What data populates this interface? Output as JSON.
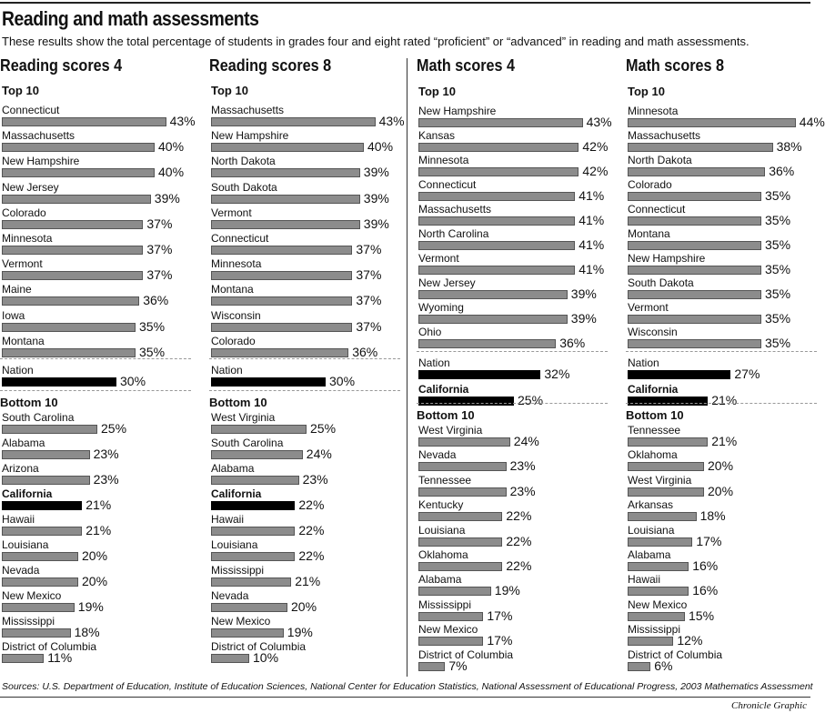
{
  "title": "Reading and math assessments",
  "subtitle": "These results show the total percentage of students in grades four and eight rated “proficient” or “advanced” in reading and math assessments.",
  "sources": "Sources: U.S. Department of Education, Institute of Education Sciences, National Center for Education Statistics, National Assessment of Educational Progress, 2003 Mathematics Assessment",
  "credit": "Chronicle Graphic",
  "chart_data": [
    {
      "type": "bar",
      "title": "Reading scores 4",
      "top_label": "Top 10",
      "bottom_label": "Bottom 10",
      "unit": "%",
      "top": [
        [
          "Connecticut",
          43
        ],
        [
          "Massachusetts",
          40
        ],
        [
          "New Hampshire",
          40
        ],
        [
          "New Jersey",
          39
        ],
        [
          "Colorado",
          37
        ],
        [
          "Minnesota",
          37
        ],
        [
          "Vermont",
          37
        ],
        [
          "Maine",
          36
        ],
        [
          "Iowa",
          35
        ],
        [
          "Montana",
          35
        ]
      ],
      "mid": [
        [
          "Nation",
          30
        ]
      ],
      "bottom": [
        [
          "South Carolina",
          25
        ],
        [
          "Alabama",
          23
        ],
        [
          "Arizona",
          23
        ],
        [
          "California",
          21
        ],
        [
          "Hawaii",
          21
        ],
        [
          "Louisiana",
          20
        ],
        [
          "Nevada",
          20
        ],
        [
          "New Mexico",
          19
        ],
        [
          "Mississippi",
          18
        ],
        [
          "District of Columbia",
          11
        ]
      ]
    },
    {
      "type": "bar",
      "title": "Reading scores 8",
      "top_label": "Top 10",
      "bottom_label": "Bottom 10",
      "unit": "%",
      "top": [
        [
          "Massachusetts",
          43
        ],
        [
          "New Hampshire",
          40
        ],
        [
          "North Dakota",
          39
        ],
        [
          "South Dakota",
          39
        ],
        [
          "Vermont",
          39
        ],
        [
          "Connecticut",
          37
        ],
        [
          "Minnesota",
          37
        ],
        [
          "Montana",
          37
        ],
        [
          "Wisconsin",
          37
        ],
        [
          "Colorado",
          36
        ]
      ],
      "mid": [
        [
          "Nation",
          30
        ]
      ],
      "bottom": [
        [
          "West Virginia",
          25
        ],
        [
          "South Carolina",
          24
        ],
        [
          "Alabama",
          23
        ],
        [
          "California",
          22
        ],
        [
          "Hawaii",
          22
        ],
        [
          "Louisiana",
          22
        ],
        [
          "Mississippi",
          21
        ],
        [
          "Nevada",
          20
        ],
        [
          "New Mexico",
          19
        ],
        [
          "District of Columbia",
          10
        ]
      ]
    },
    {
      "type": "bar",
      "title": "Math scores 4",
      "top_label": "Top 10",
      "bottom_label": "Bottom 10",
      "unit": "%",
      "top": [
        [
          "New Hampshire",
          43
        ],
        [
          "Kansas",
          42
        ],
        [
          "Minnesota",
          42
        ],
        [
          "Connecticut",
          41
        ],
        [
          "Massachusetts",
          41
        ],
        [
          "North Carolina",
          41
        ],
        [
          "Vermont",
          41
        ],
        [
          "New Jersey",
          39
        ],
        [
          "Wyoming",
          39
        ],
        [
          "Ohio",
          36
        ]
      ],
      "mid": [
        [
          "Nation",
          32
        ],
        [
          "California",
          25
        ]
      ],
      "bottom": [
        [
          "West Virginia",
          24
        ],
        [
          "Nevada",
          23
        ],
        [
          "Tennessee",
          23
        ],
        [
          "Kentucky",
          22
        ],
        [
          "Louisiana",
          22
        ],
        [
          "Oklahoma",
          22
        ],
        [
          "Alabama",
          19
        ],
        [
          "Mississippi",
          17
        ],
        [
          "New Mexico",
          17
        ],
        [
          "District of Columbia",
          7
        ]
      ]
    },
    {
      "type": "bar",
      "title": "Math scores 8",
      "top_label": "Top 10",
      "bottom_label": "Bottom 10",
      "unit": "%",
      "top": [
        [
          "Minnesota",
          44
        ],
        [
          "Massachusetts",
          38
        ],
        [
          "North Dakota",
          36
        ],
        [
          "Colorado",
          35
        ],
        [
          "Connecticut",
          35
        ],
        [
          "Montana",
          35
        ],
        [
          "New Hampshire",
          35
        ],
        [
          "South Dakota",
          35
        ],
        [
          "Vermont",
          35
        ],
        [
          "Wisconsin",
          35
        ]
      ],
      "mid": [
        [
          "Nation",
          27
        ],
        [
          "California",
          21
        ]
      ],
      "bottom": [
        [
          "Tennessee",
          21
        ],
        [
          "Oklahoma",
          20
        ],
        [
          "West Virginia",
          20
        ],
        [
          "Arkansas",
          18
        ],
        [
          "Louisiana",
          17
        ],
        [
          "Alabama",
          16
        ],
        [
          "Hawaii",
          16
        ],
        [
          "New Mexico",
          15
        ],
        [
          "Mississippi",
          12
        ],
        [
          "District of Columbia",
          6
        ]
      ]
    }
  ]
}
